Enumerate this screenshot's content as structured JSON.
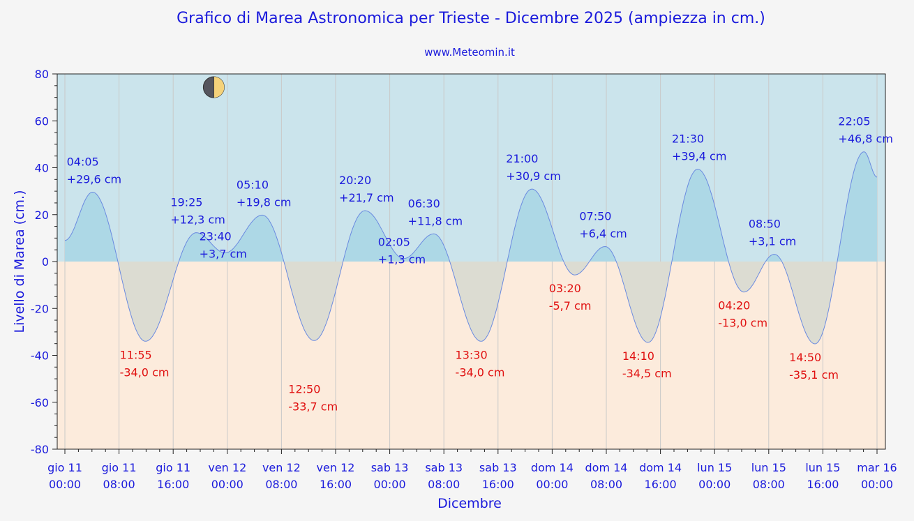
{
  "chart_data": {
    "type": "area",
    "title": "Grafico di Marea Astronomica per Trieste - Dicembre 2025 (ampiezza in cm.)",
    "subtitle": "www.Meteomin.it",
    "xlabel": "Dicembre",
    "ylabel": "Livello di Marea (cm.)",
    "ylim": [
      -80,
      80
    ],
    "yticks": [
      "80",
      "60",
      "40",
      "20",
      "0",
      "-20",
      "-40",
      "-60",
      "-80"
    ],
    "xlim_hours": [
      0,
      120
    ],
    "xticks": [
      {
        "day": "gio 11",
        "time": "00:00"
      },
      {
        "day": "gio 11",
        "time": "08:00"
      },
      {
        "day": "gio 11",
        "time": "16:00"
      },
      {
        "day": "ven 12",
        "time": "00:00"
      },
      {
        "day": "ven 12",
        "time": "08:00"
      },
      {
        "day": "ven 12",
        "time": "16:00"
      },
      {
        "day": "sab 13",
        "time": "00:00"
      },
      {
        "day": "sab 13",
        "time": "08:00"
      },
      {
        "day": "sab 13",
        "time": "16:00"
      },
      {
        "day": "dom 14",
        "time": "00:00"
      },
      {
        "day": "dom 14",
        "time": "08:00"
      },
      {
        "day": "dom 14",
        "time": "16:00"
      },
      {
        "day": "lun 15",
        "time": "00:00"
      },
      {
        "day": "lun 15",
        "time": "08:00"
      },
      {
        "day": "lun 15",
        "time": "16:00"
      },
      {
        "day": "mar 16",
        "time": "00:00"
      }
    ],
    "series": [
      {
        "extrema": [
          {
            "day": "gio 11",
            "time": "04:05",
            "label": "+29,6 cm",
            "value": 29.6,
            "type": "high"
          },
          {
            "day": "gio 11",
            "time": "11:55",
            "label": "-34,0 cm",
            "value": -34.0,
            "type": "low"
          },
          {
            "day": "gio 11",
            "time": "19:25",
            "label": "+12,3 cm",
            "value": 12.3,
            "type": "high"
          },
          {
            "day": "gio 11",
            "time": "23:40",
            "label": "+3,7 cm",
            "value": 3.7,
            "type": "low"
          },
          {
            "day": "ven 12",
            "time": "05:10",
            "label": "+19,8 cm",
            "value": 19.8,
            "type": "high"
          },
          {
            "day": "ven 12",
            "time": "12:50",
            "label": "-33,7 cm",
            "value": -33.7,
            "type": "low"
          },
          {
            "day": "ven 12",
            "time": "20:20",
            "label": "+21,7 cm",
            "value": 21.7,
            "type": "high"
          },
          {
            "day": "sab 13",
            "time": "02:05",
            "label": "+1,3 cm",
            "value": 1.3,
            "type": "low"
          },
          {
            "day": "sab 13",
            "time": "06:30",
            "label": "+11,8 cm",
            "value": 11.8,
            "type": "high"
          },
          {
            "day": "sab 13",
            "time": "13:30",
            "label": "-34,0 cm",
            "value": -34.0,
            "type": "low"
          },
          {
            "day": "sab 13",
            "time": "21:00",
            "label": "+30,9 cm",
            "value": 30.9,
            "type": "high"
          },
          {
            "day": "dom 14",
            "time": "03:20",
            "label": "-5,7 cm",
            "value": -5.7,
            "type": "low"
          },
          {
            "day": "dom 14",
            "time": "07:50",
            "label": "+6,4 cm",
            "value": 6.4,
            "type": "high"
          },
          {
            "day": "dom 14",
            "time": "14:10",
            "label": "-34,5 cm",
            "value": -34.5,
            "type": "low"
          },
          {
            "day": "dom 14",
            "time": "21:30",
            "label": "+39,4 cm",
            "value": 39.4,
            "type": "high"
          },
          {
            "day": "lun 15",
            "time": "04:20",
            "label": "-13,0 cm",
            "value": -13.0,
            "type": "low"
          },
          {
            "day": "lun 15",
            "time": "08:50",
            "label": "+3,1 cm",
            "value": 3.1,
            "type": "high"
          },
          {
            "day": "lun 15",
            "time": "14:50",
            "label": "-35,1 cm",
            "value": -35.1,
            "type": "low"
          },
          {
            "day": "lun 15",
            "time": "22:05",
            "label": "+46,8 cm",
            "value": 46.8,
            "type": "high"
          }
        ],
        "start_value": 9,
        "end_value": 36
      }
    ],
    "moon_phase": {
      "icon": "first-quarter-moon-icon",
      "day": "gio 11",
      "time": "22:00"
    },
    "grid": true,
    "colors": {
      "high_fill": "#add8e6",
      "low_fill": "#dcdcd2",
      "above_bg": "#cbe4ec",
      "below_bg": "#fcebdc",
      "line": "#6a8ae0",
      "text_blue": "#1a1adc",
      "text_red": "#e01010"
    }
  }
}
